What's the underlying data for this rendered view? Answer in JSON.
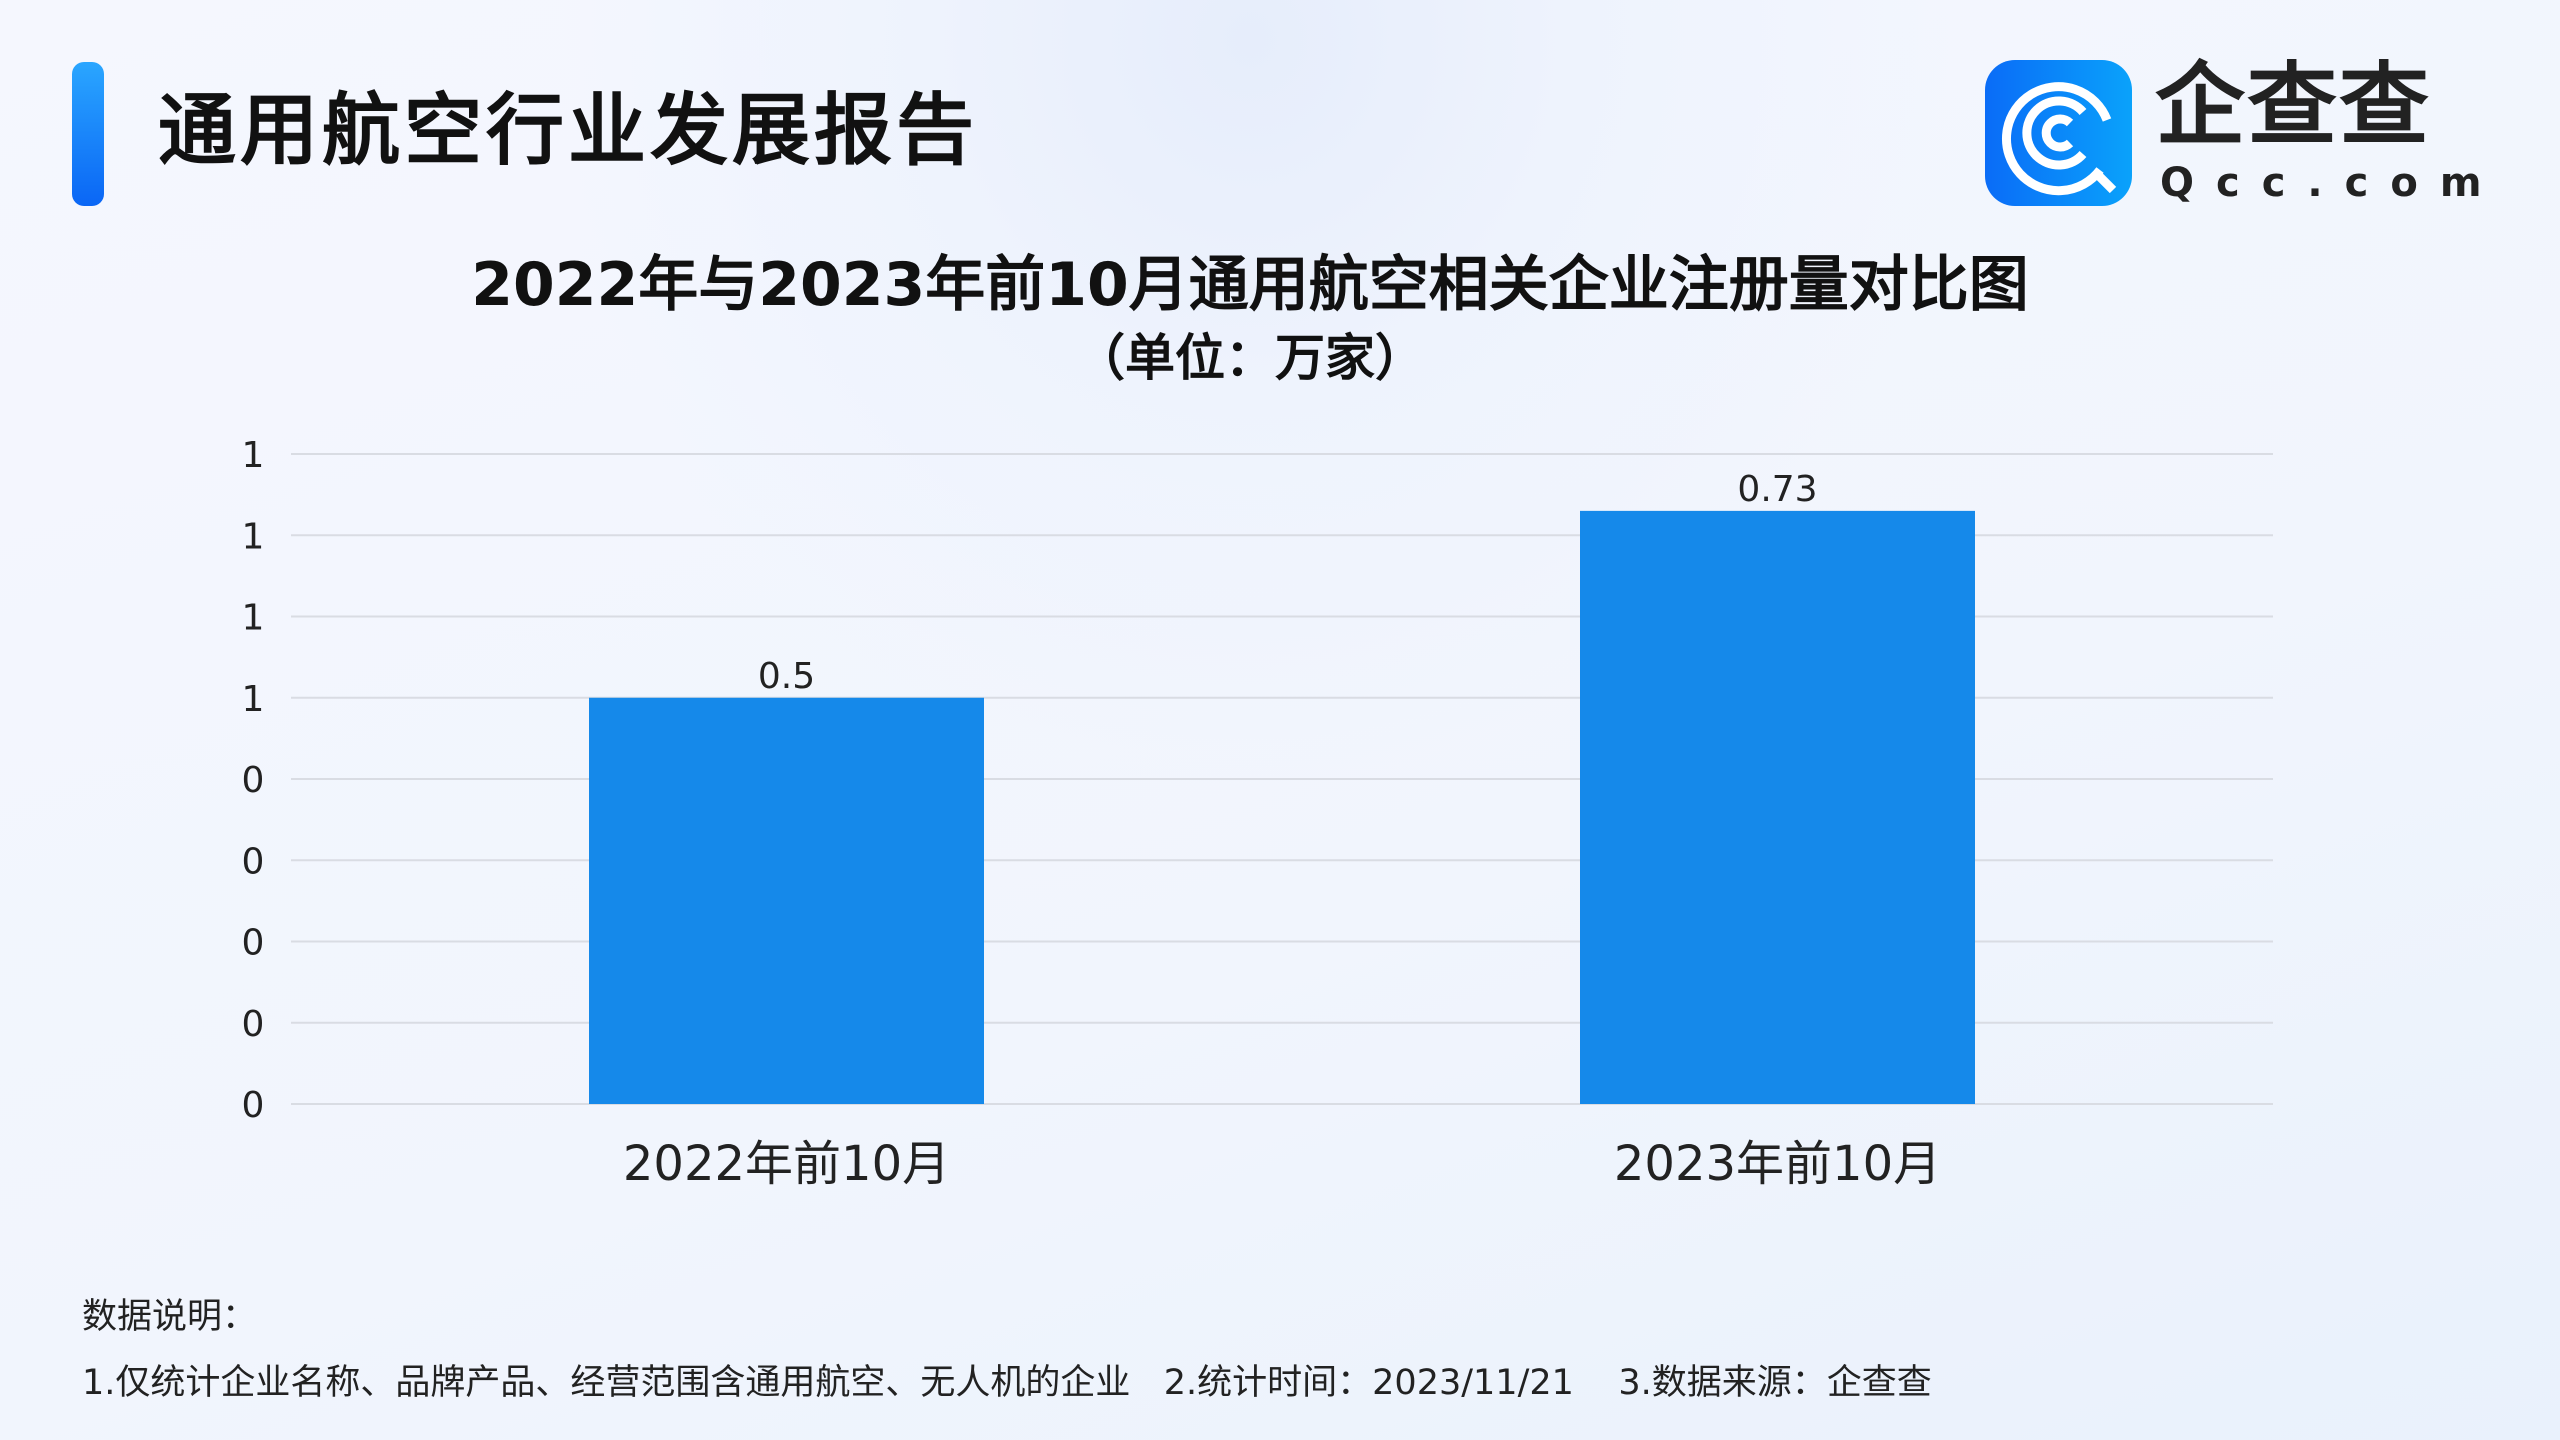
{
  "header": {
    "title": "通用航空行业发展报告"
  },
  "logo": {
    "text_cn": "企查查",
    "text_en": "Qcc.com"
  },
  "chart_data": {
    "type": "bar",
    "title": "2022年与2023年前10月通用航空相关企业注册量对比图",
    "subtitle": "（单位：万家）",
    "categories": [
      "2022年前10月",
      "2023年前10月"
    ],
    "values": [
      0.5,
      0.73
    ],
    "data_labels": [
      "0.5",
      "0.73"
    ],
    "ylim": [
      0,
      0.8
    ],
    "y_ticks": [
      0,
      0.1,
      0.2,
      0.3,
      0.4,
      0.5,
      0.6,
      0.7,
      0.8
    ],
    "y_tick_labels": [
      "0",
      "0",
      "0",
      "0",
      "0",
      "1",
      "1",
      "1",
      "1"
    ],
    "grid": true,
    "bar_color": "#1589EA"
  },
  "footer": {
    "label": "数据说明：",
    "notes": "1.仅统计企业名称、品牌产品、经营范围含通用航空、无人机的企业   2.统计时间：2023/11/21    3.数据来源：企查查"
  }
}
